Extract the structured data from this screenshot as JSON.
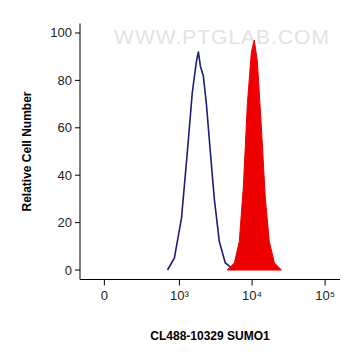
{
  "chart_data": {
    "type": "line",
    "x_label": "CL488-10329 SUMO1",
    "y_label": "Relative Cell Number",
    "annotations": [
      "WWW.PTGLAB.COM"
    ],
    "log": "x",
    "xlim": [
      -160,
      160000
    ],
    "xticks": [
      0,
      {
        "value": 1000,
        "label": "10³"
      },
      {
        "value": 10000,
        "label": "10⁴"
      },
      {
        "value": 100000,
        "label": "10⁵"
      }
    ],
    "ylim": [
      -4,
      104
    ],
    "yticks": [
      0,
      20,
      40,
      60,
      80,
      100
    ],
    "series": [
      {
        "type": "line",
        "color": "#1c1c7a",
        "x": [
          680,
          850,
          1070,
          1290,
          1510,
          1720,
          1830,
          1950,
          2140,
          2360,
          2670,
          3030,
          3550,
          4290,
          5710
        ],
        "values": [
          0,
          5,
          22,
          50,
          75,
          88,
          92,
          86,
          82,
          70,
          50,
          30,
          12,
          3,
          0
        ]
      },
      {
        "type": "area",
        "color": "#ee0000",
        "x": [
          4570,
          5710,
          6670,
          7580,
          8600,
          9770,
          10700,
          11800,
          13400,
          15200,
          17200,
          20200,
          25200
        ],
        "values": [
          0,
          3,
          12,
          35,
          70,
          92,
          97,
          88,
          60,
          30,
          12,
          3,
          0
        ]
      }
    ]
  }
}
